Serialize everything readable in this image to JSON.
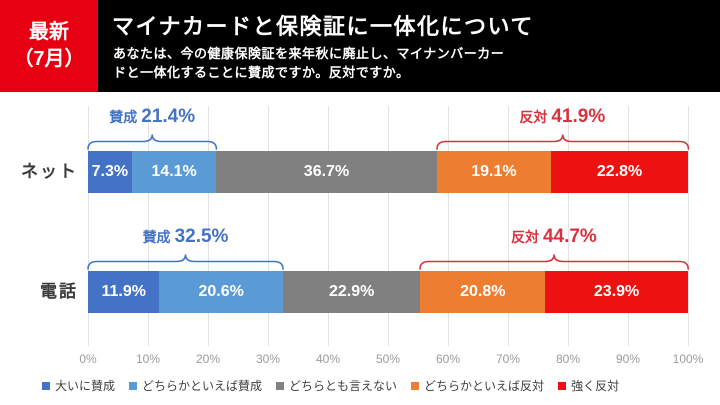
{
  "header": {
    "badge_line1": "最新",
    "badge_line2": "（7月）",
    "title": "マイナカードと保険証に一体化について",
    "subtitle_line1": "あなたは、今の健康保険証を来年秋に廃止し、マイナンバーカー",
    "subtitle_line2": "ドと一体化することに賛成ですか。反対ですか。"
  },
  "colors": {
    "badge_red": "#e60012",
    "agree_accent": "#4472c4",
    "oppose_accent": "#d9323e",
    "grid": "#e3e3e3"
  },
  "chart_data": {
    "type": "bar",
    "orientation": "horizontal",
    "stacked": true,
    "categories": [
      "ネット",
      "電話"
    ],
    "series": [
      {
        "name": "大いに賛成",
        "color": "#4472c4",
        "values": [
          7.3,
          11.9
        ]
      },
      {
        "name": "どちらかといえば賛成",
        "color": "#5b9bd5",
        "values": [
          14.1,
          20.6
        ]
      },
      {
        "name": "どちらとも言えない",
        "color": "#808080",
        "values": [
          36.7,
          22.9
        ]
      },
      {
        "name": "どちらかといえば反対",
        "color": "#ed7d31",
        "values": [
          19.1,
          20.8
        ]
      },
      {
        "name": "強く反対",
        "color": "#ee1111",
        "values": [
          22.8,
          23.9
        ]
      }
    ],
    "brackets": [
      {
        "category": "ネット",
        "side": "agree",
        "label": "賛成",
        "value": "21.4%"
      },
      {
        "category": "ネット",
        "side": "oppose",
        "label": "反対",
        "value": "41.9%"
      },
      {
        "category": "電話",
        "side": "agree",
        "label": "賛成",
        "value": "32.5%"
      },
      {
        "category": "電話",
        "side": "oppose",
        "label": "反対",
        "value": "44.7%"
      }
    ],
    "x_ticks": [
      "0%",
      "10%",
      "20%",
      "30%",
      "40%",
      "50%",
      "60%",
      "70%",
      "80%",
      "90%",
      "100%"
    ],
    "xlim": [
      0,
      100
    ],
    "grid": true,
    "legend_position": "bottom"
  }
}
